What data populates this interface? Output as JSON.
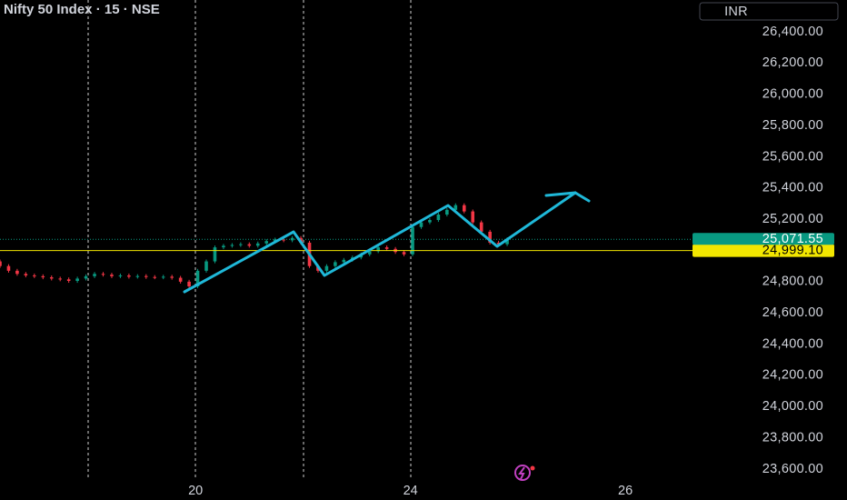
{
  "chart_data": {
    "type": "candlestick",
    "title": "Nifty 50 Index · 15 · NSE",
    "currency": "INR",
    "up_color": "#089981",
    "down_color": "#f23645",
    "x": [
      0,
      2,
      4,
      6,
      8,
      10,
      12,
      14,
      16,
      18,
      20,
      22,
      24,
      26,
      28,
      30,
      32,
      34,
      36,
      38,
      40,
      42,
      44,
      46,
      48,
      50,
      52,
      54,
      56,
      58,
      60,
      62,
      64,
      66,
      68,
      70,
      72,
      74,
      76,
      78,
      80,
      82,
      84,
      86,
      88,
      90,
      92,
      94,
      96,
      98,
      100,
      102,
      104,
      106,
      108,
      110,
      112,
      114,
      116,
      118
    ],
    "open": [
      24930,
      24900,
      24870,
      24850,
      24840,
      24835,
      24828,
      24820,
      24815,
      24805,
      24820,
      24835,
      24850,
      24845,
      24835,
      24840,
      24832,
      24836,
      24830,
      24828,
      24832,
      24825,
      24800,
      24770,
      24870,
      24930,
      25020,
      25030,
      25035,
      25040,
      25030,
      25045,
      25060,
      25070,
      25065,
      25080,
      25050,
      24900,
      24870,
      24900,
      24925,
      24940,
      24955,
      24975,
      24995,
      25020,
      25010,
      24990,
      24975,
      25150,
      25180,
      25195,
      25230,
      25260,
      25290,
      25250,
      25180,
      25120,
      25050,
      25040
    ],
    "high": [
      24942,
      24912,
      24882,
      24862,
      24852,
      24847,
      24840,
      24832,
      24827,
      24832,
      24847,
      24862,
      24862,
      24857,
      24852,
      24852,
      24848,
      24848,
      24842,
      24844,
      24844,
      24837,
      24812,
      24882,
      24942,
      25032,
      25042,
      25047,
      25052,
      25052,
      25057,
      25072,
      25082,
      25082,
      25092,
      25092,
      25062,
      24912,
      24912,
      24937,
      24952,
      24967,
      24987,
      25007,
      25032,
      25032,
      25022,
      25002,
      25162,
      25192,
      25207,
      25242,
      25272,
      25302,
      25302,
      25262,
      25192,
      25132,
      25062,
      25083.55
    ],
    "low": [
      24888,
      24858,
      24838,
      24828,
      24823,
      24816,
      24808,
      24803,
      24793,
      24793,
      24808,
      24823,
      24833,
      24823,
      24823,
      24820,
      24820,
      24818,
      24816,
      24816,
      24813,
      24788,
      24758,
      24758,
      24858,
      24918,
      25008,
      25018,
      25023,
      25018,
      25018,
      25033,
      25048,
      25053,
      25053,
      25038,
      24888,
      24858,
      24858,
      24888,
      24913,
      24928,
      24943,
      24963,
      24983,
      24998,
      24978,
      24963,
      24963,
      25138,
      25168,
      25183,
      25218,
      25248,
      25238,
      25168,
      25108,
      25038,
      25028,
      25028
    ],
    "close": [
      24900,
      24870,
      24850,
      24840,
      24835,
      24828,
      24820,
      24815,
      24805,
      24820,
      24835,
      24850,
      24845,
      24835,
      24840,
      24832,
      24836,
      24830,
      24828,
      24832,
      24825,
      24800,
      24770,
      24870,
      24930,
      25020,
      25030,
      25035,
      25040,
      25030,
      25045,
      25060,
      25070,
      25065,
      25080,
      25050,
      24900,
      24870,
      24900,
      24925,
      24940,
      24955,
      24975,
      24995,
      25020,
      25010,
      24990,
      24975,
      25150,
      25180,
      25195,
      25230,
      25260,
      25290,
      25250,
      25180,
      25120,
      25050,
      25040,
      25071.55
    ],
    "xlim": [
      0,
      160.7
    ],
    "xticks": [
      {
        "value": 45.5,
        "label": "20"
      },
      {
        "value": 95.5,
        "label": "24"
      },
      {
        "value": 145.5,
        "label": "26"
      }
    ],
    "ylim": [
      23530,
      26604
    ],
    "yticks": [
      {
        "value": 23600,
        "label": "23,600.00"
      },
      {
        "value": 23800,
        "label": "23,800.00"
      },
      {
        "value": 24000,
        "label": "24,000.00"
      },
      {
        "value": 24200,
        "label": "24,200.00"
      },
      {
        "value": 24400,
        "label": "24,400.00"
      },
      {
        "value": 24600,
        "label": "24,600.00"
      },
      {
        "value": 24800,
        "label": "24,800.00"
      },
      {
        "value": 25200,
        "label": "25,200.00"
      },
      {
        "value": 25400,
        "label": "25,400.00"
      },
      {
        "value": 25600,
        "label": "25,600.00"
      },
      {
        "value": 25800,
        "label": "25,800.00"
      },
      {
        "value": 26000,
        "label": "26,000.00"
      },
      {
        "value": 26200,
        "label": "26,200.00"
      },
      {
        "value": 26400,
        "label": "26,400.00"
      }
    ],
    "last_price": {
      "value": 25071.55,
      "label": "25,071.55",
      "color": "#089981"
    },
    "level_line": {
      "value": 24999.1,
      "label": "24,999.10",
      "color": "#f2e600"
    }
  }
}
